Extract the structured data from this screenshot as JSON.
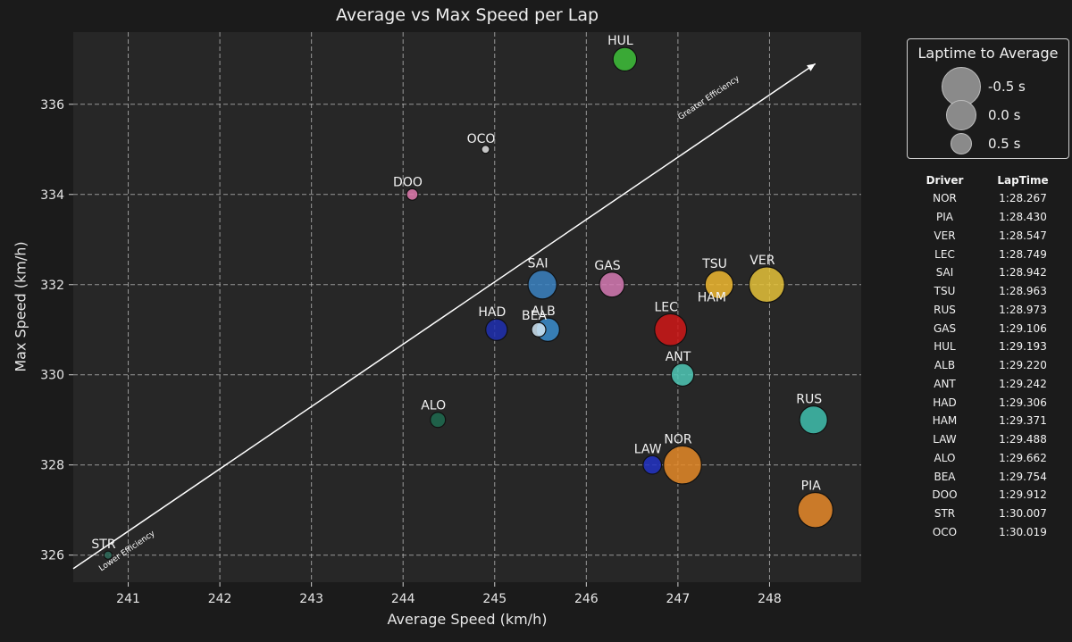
{
  "chart_data": {
    "type": "scatter",
    "title": "Average vs Max Speed per Lap",
    "xlabel": "Average Speed (km/h)",
    "ylabel": "Max Speed (km/h)",
    "xlim": [
      240.4,
      249.0
    ],
    "ylim": [
      325.4,
      337.6
    ],
    "xticks": [
      "241",
      "242",
      "243",
      "244",
      "245",
      "246",
      "247",
      "248"
    ],
    "yticks": [
      "326",
      "328",
      "330",
      "332",
      "334",
      "336"
    ],
    "grid": true,
    "points": [
      {
        "driver": "HUL",
        "x": 246.42,
        "y": 337.0,
        "laptime_delta": -0.02,
        "color": "#3ec13a"
      },
      {
        "driver": "OCO",
        "x": 244.9,
        "y": 335.0,
        "laptime_delta": 0.85,
        "color": "#e0e0e0"
      },
      {
        "driver": "DOO",
        "x": 244.1,
        "y": 334.0,
        "laptime_delta": 0.66,
        "color": "#e07aae"
      },
      {
        "driver": "SAI",
        "x": 245.52,
        "y": 332.0,
        "laptime_delta": -0.31,
        "color": "#3b82c2"
      },
      {
        "driver": "GAS",
        "x": 246.28,
        "y": 332.0,
        "laptime_delta": -0.1,
        "color": "#d67ab4"
      },
      {
        "driver": "TSU",
        "x": 247.45,
        "y": 332.0,
        "laptime_delta": -0.28,
        "color": "#f0b830"
      },
      {
        "driver": "VER",
        "x": 247.97,
        "y": 332.0,
        "laptime_delta": -0.69,
        "color": "#e5c23a"
      },
      {
        "driver": "HAD",
        "x": 245.02,
        "y": 331.0,
        "laptime_delta": 0.09,
        "color": "#1e2fb0"
      },
      {
        "driver": "BEA",
        "x": 245.48,
        "y": 331.0,
        "laptime_delta": 0.5,
        "color": "#cfe4f2"
      },
      {
        "driver": "ALB",
        "x": 245.58,
        "y": 331.0,
        "laptime_delta": -0.01,
        "color": "#3b8ecf"
      },
      {
        "driver": "LEC",
        "x": 246.92,
        "y": 331.0,
        "laptime_delta": -0.49,
        "color": "#d01818"
      },
      {
        "driver": "ANT",
        "x": 247.05,
        "y": 330.0,
        "laptime_delta": 0.03,
        "color": "#4fc8b6"
      },
      {
        "driver": "ALO",
        "x": 244.38,
        "y": 329.0,
        "laptime_delta": 0.45,
        "color": "#1e6b50"
      },
      {
        "driver": "RUS",
        "x": 248.48,
        "y": 329.0,
        "laptime_delta": -0.26,
        "color": "#3fbfae"
      },
      {
        "driver": "LAW",
        "x": 246.72,
        "y": 328.0,
        "laptime_delta": 0.27,
        "color": "#2233c4"
      },
      {
        "driver": "NOR",
        "x": 247.05,
        "y": 328.0,
        "laptime_delta": -0.83,
        "color": "#e58a28"
      },
      {
        "driver": "PIA",
        "x": 248.5,
        "y": 327.0,
        "laptime_delta": -0.67,
        "color": "#e8892a"
      },
      {
        "driver": "STR",
        "x": 240.78,
        "y": 326.0,
        "laptime_delta": 0.84,
        "color": "#2f6b5a"
      }
    ],
    "annotations": [
      {
        "text": "Greater Efficiency",
        "x": 247.35,
        "y": 336.1
      },
      {
        "text": "Lower Efficiency",
        "x": 241.0,
        "y": 326.05
      }
    ],
    "arrow": {
      "from": [
        240.4,
        325.7
      ],
      "to": [
        248.5,
        336.9
      ]
    },
    "legend": {
      "title": "Laptime to Average",
      "placement": "right",
      "entries": [
        {
          "label": "-0.5 s",
          "delta": -0.5
        },
        {
          "label": "0.0 s",
          "delta": 0.0
        },
        {
          "label": "0.5 s",
          "delta": 0.5
        }
      ]
    }
  },
  "laptime_table": {
    "headers": [
      "Driver",
      "LapTime"
    ],
    "rows": [
      [
        "NOR",
        "1:28.267"
      ],
      [
        "PIA",
        "1:28.430"
      ],
      [
        "VER",
        "1:28.547"
      ],
      [
        "LEC",
        "1:28.749"
      ],
      [
        "SAI",
        "1:28.942"
      ],
      [
        "TSU",
        "1:28.963"
      ],
      [
        "RUS",
        "1:28.973"
      ],
      [
        "GAS",
        "1:29.106"
      ],
      [
        "HUL",
        "1:29.193"
      ],
      [
        "ALB",
        "1:29.220"
      ],
      [
        "ANT",
        "1:29.242"
      ],
      [
        "HAD",
        "1:29.306"
      ],
      [
        "HAM",
        "1:29.371"
      ],
      [
        "LAW",
        "1:29.488"
      ],
      [
        "ALO",
        "1:29.662"
      ],
      [
        "BEA",
        "1:29.754"
      ],
      [
        "DOO",
        "1:29.912"
      ],
      [
        "STR",
        "1:30.007"
      ],
      [
        "OCO",
        "1:30.019"
      ]
    ]
  },
  "extra_labels": [
    {
      "text": "HAM",
      "x": 247.37,
      "y": 331.63
    }
  ]
}
